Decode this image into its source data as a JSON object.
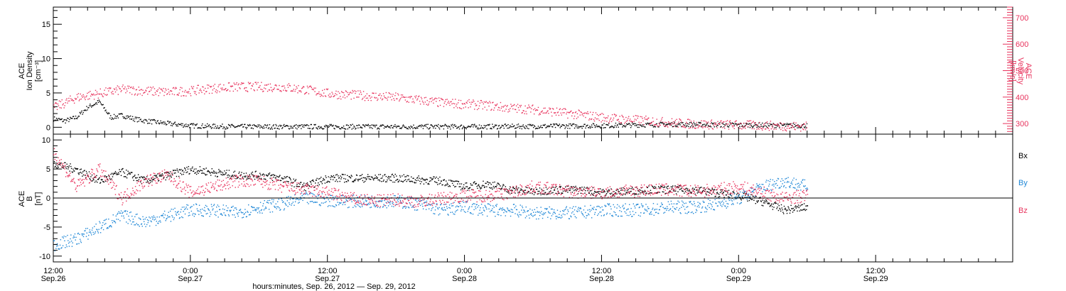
{
  "chart_data": [
    {
      "type": "scatter",
      "panel": "top",
      "ylabel_lines": [
        "ACE",
        "Ion Density",
        "[cm⁻³]"
      ],
      "y2label_lines": [
        "ACE",
        "Velocity",
        "[km/s]"
      ],
      "ylim": [
        -1,
        17.5
      ],
      "y2lim": [
        260,
        740
      ],
      "yticks": [
        0,
        5,
        10,
        15
      ],
      "y2ticks": [
        300,
        400,
        500,
        600,
        700
      ],
      "colors": {
        "density": "#000000",
        "velocity": "#e8335d"
      },
      "series": [
        {
          "key": "density",
          "axis": "left",
          "x": [
            0,
            2,
            4,
            6,
            8,
            10,
            12,
            14,
            16,
            18,
            20,
            24,
            28,
            32,
            36,
            40,
            48,
            60,
            72,
            84,
            96,
            108,
            120,
            132
          ],
          "y": [
            1.3,
            1.0,
            1.5,
            3.0,
            3.8,
            1.5,
            1.8,
            1.3,
            1.0,
            0.8,
            0.6,
            0.3,
            0.2,
            0.15,
            0.15,
            0.15,
            0.15,
            0.15,
            0.15,
            0.2,
            0.3,
            0.5,
            0.4,
            0.3
          ]
        },
        {
          "key": "velocity",
          "axis": "right",
          "x": [
            0,
            4,
            8,
            12,
            16,
            20,
            24,
            28,
            32,
            36,
            40,
            44,
            48,
            52,
            56,
            60,
            64,
            68,
            72,
            76,
            80,
            84,
            88,
            92,
            96,
            100,
            104,
            108,
            112,
            116,
            120,
            124,
            128,
            132
          ],
          "y": [
            360,
            400,
            415,
            430,
            425,
            420,
            425,
            435,
            440,
            440,
            440,
            430,
            415,
            410,
            405,
            400,
            390,
            380,
            375,
            370,
            360,
            355,
            345,
            335,
            325,
            318,
            312,
            305,
            300,
            298,
            296,
            294,
            292,
            290
          ]
        }
      ]
    },
    {
      "type": "scatter",
      "panel": "bottom",
      "ylabel_lines": [
        "ACE",
        "B",
        "[nT]"
      ],
      "ylim": [
        -11,
        11
      ],
      "yticks": [
        -10,
        -5,
        0,
        5,
        10
      ],
      "zero_line": true,
      "legend": [
        "Bx",
        "By",
        "Bz"
      ],
      "colors": {
        "Bx": "#000000",
        "By": "#1f87d6",
        "Bz": "#e8335d"
      },
      "series": [
        {
          "key": "Bx",
          "x": [
            0,
            4,
            8,
            12,
            16,
            20,
            24,
            28,
            32,
            36,
            40,
            44,
            48,
            52,
            56,
            60,
            64,
            68,
            72,
            76,
            80,
            84,
            88,
            92,
            96,
            100,
            104,
            108,
            112,
            116,
            120,
            124,
            128,
            132
          ],
          "y": [
            6,
            5,
            3,
            4.5,
            3,
            4,
            5,
            4.5,
            4,
            4,
            3.5,
            2,
            3.5,
            3.5,
            3.5,
            3.5,
            3.2,
            3,
            2,
            2.5,
            1.5,
            1.2,
            1.5,
            1.5,
            1,
            1.2,
            1.5,
            1.5,
            1.5,
            1,
            0.5,
            -0.5,
            -2,
            -1.5
          ]
        },
        {
          "key": "By",
          "x": [
            0,
            4,
            8,
            12,
            16,
            20,
            24,
            28,
            32,
            36,
            40,
            44,
            48,
            52,
            56,
            60,
            64,
            68,
            72,
            76,
            80,
            84,
            88,
            92,
            96,
            100,
            104,
            108,
            112,
            116,
            120,
            124,
            128,
            132
          ],
          "y": [
            -8,
            -7,
            -5,
            -3,
            -4,
            -3,
            -2,
            -2,
            -2.5,
            -1.5,
            -1,
            0,
            -0.3,
            -0.5,
            -0.5,
            -0.5,
            -1,
            -2,
            -1.5,
            -2,
            -2,
            -2.5,
            -2.5,
            -2.5,
            -2,
            -2,
            -2,
            -1.5,
            -1.5,
            -1,
            0,
            2,
            3,
            2
          ]
        },
        {
          "key": "Bz",
          "x": [
            0,
            4,
            8,
            12,
            16,
            20,
            24,
            28,
            32,
            36,
            40,
            44,
            48,
            52,
            56,
            60,
            64,
            68,
            72,
            76,
            80,
            84,
            88,
            92,
            96,
            100,
            104,
            108,
            112,
            116,
            120,
            124,
            128,
            132
          ],
          "y": [
            8,
            2,
            5,
            0,
            3,
            4,
            1,
            2,
            3,
            3,
            2,
            1.5,
            1,
            0,
            -0.5,
            -0.2,
            -0.5,
            0,
            0.5,
            0.5,
            1,
            2,
            1.5,
            1,
            1,
            1.2,
            1.5,
            1.5,
            1.2,
            1.5,
            2,
            1,
            0,
            0.5
          ]
        }
      ]
    }
  ],
  "xaxis": {
    "range_hours": [
      0,
      168
    ],
    "ticks": [
      {
        "h": 0,
        "top": "12:00",
        "bottom": "Sep.26"
      },
      {
        "h": 24,
        "top": "0:00",
        "bottom": "Sep.27"
      },
      {
        "h": 48,
        "top": "12:00",
        "bottom": "Sep.27"
      },
      {
        "h": 72,
        "top": "0:00",
        "bottom": "Sep.28"
      },
      {
        "h": 96,
        "top": "12:00",
        "bottom": "Sep.28"
      },
      {
        "h": 120,
        "top": "0:00",
        "bottom": "Sep.29"
      },
      {
        "h": 144,
        "top": "12:00",
        "bottom": "Sep.29"
      }
    ],
    "title": "hours:minutes, Sep. 26, 2012 — Sep. 29, 2012"
  }
}
